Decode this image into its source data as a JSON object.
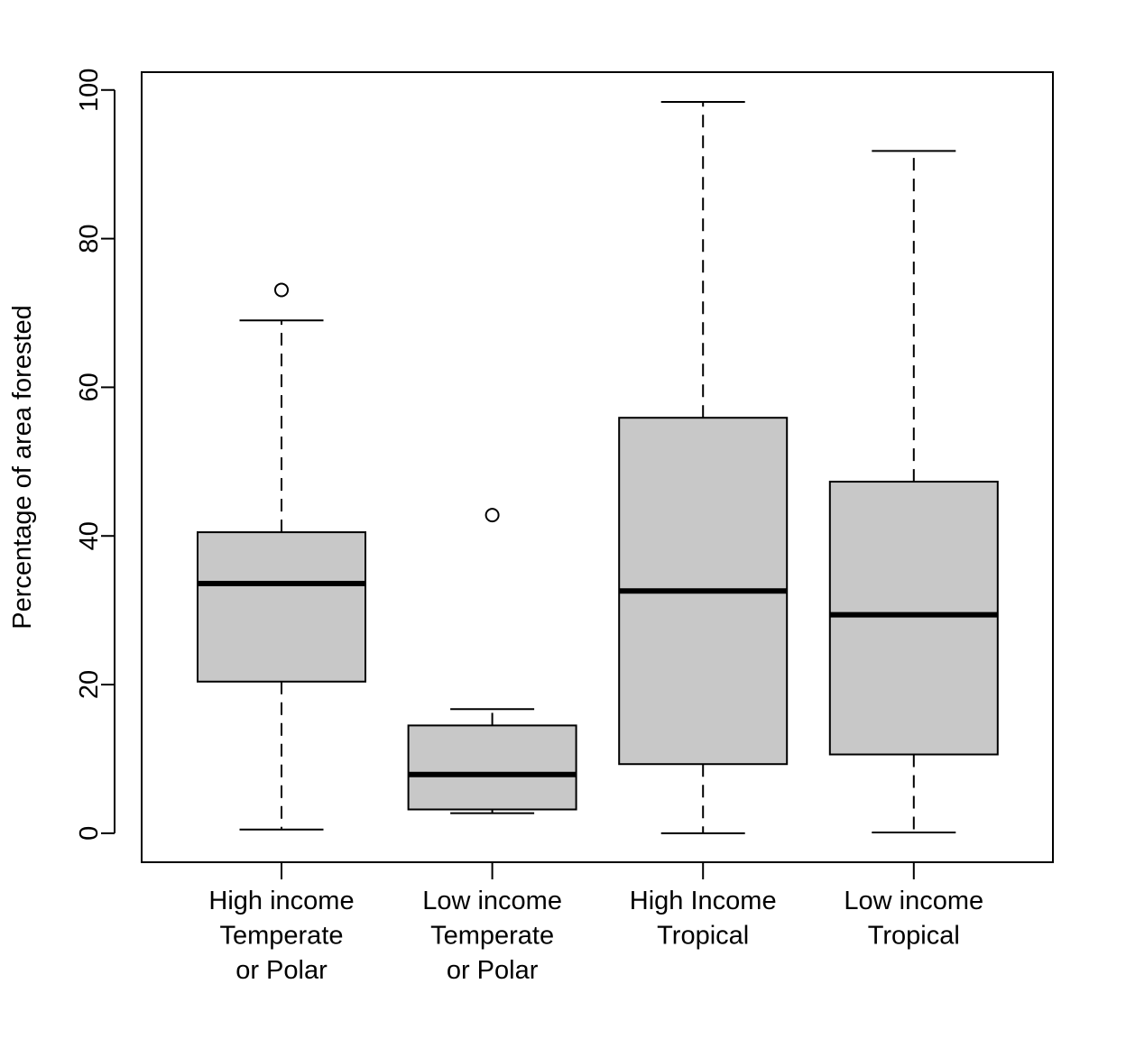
{
  "chart_data": {
    "type": "boxplot",
    "ylabel": "Percentage of area forested",
    "xlabel": "",
    "title": "",
    "ylim": [
      -3.9,
      102.4
    ],
    "yticks": [
      0,
      20,
      40,
      60,
      80,
      100
    ],
    "ytick_labels": [
      "0",
      "20",
      "40",
      "60",
      "80",
      "100"
    ],
    "box_fill": "#c8c8c8",
    "grid": false,
    "categories": [
      {
        "lines": [
          "High income",
          "Temperate",
          "or Polar"
        ],
        "whisker_low": 0.5,
        "q1": 20.4,
        "median": 33.6,
        "q3": 40.5,
        "whisker_high": 69.0,
        "outliers": [
          73.1
        ]
      },
      {
        "lines": [
          "Low income",
          "Temperate",
          "or Polar"
        ],
        "whisker_low": 2.7,
        "q1": 3.2,
        "median": 7.9,
        "q3": 14.5,
        "whisker_high": 16.7,
        "outliers": [
          42.8
        ]
      },
      {
        "lines": [
          "High Income",
          "Tropical"
        ],
        "whisker_low": 0.0,
        "q1": 9.3,
        "median": 32.6,
        "q3": 55.9,
        "whisker_high": 98.4,
        "outliers": []
      },
      {
        "lines": [
          "Low income",
          "Tropical"
        ],
        "whisker_low": 0.1,
        "q1": 10.6,
        "median": 29.4,
        "q3": 47.3,
        "whisker_high": 91.8,
        "outliers": []
      }
    ]
  }
}
